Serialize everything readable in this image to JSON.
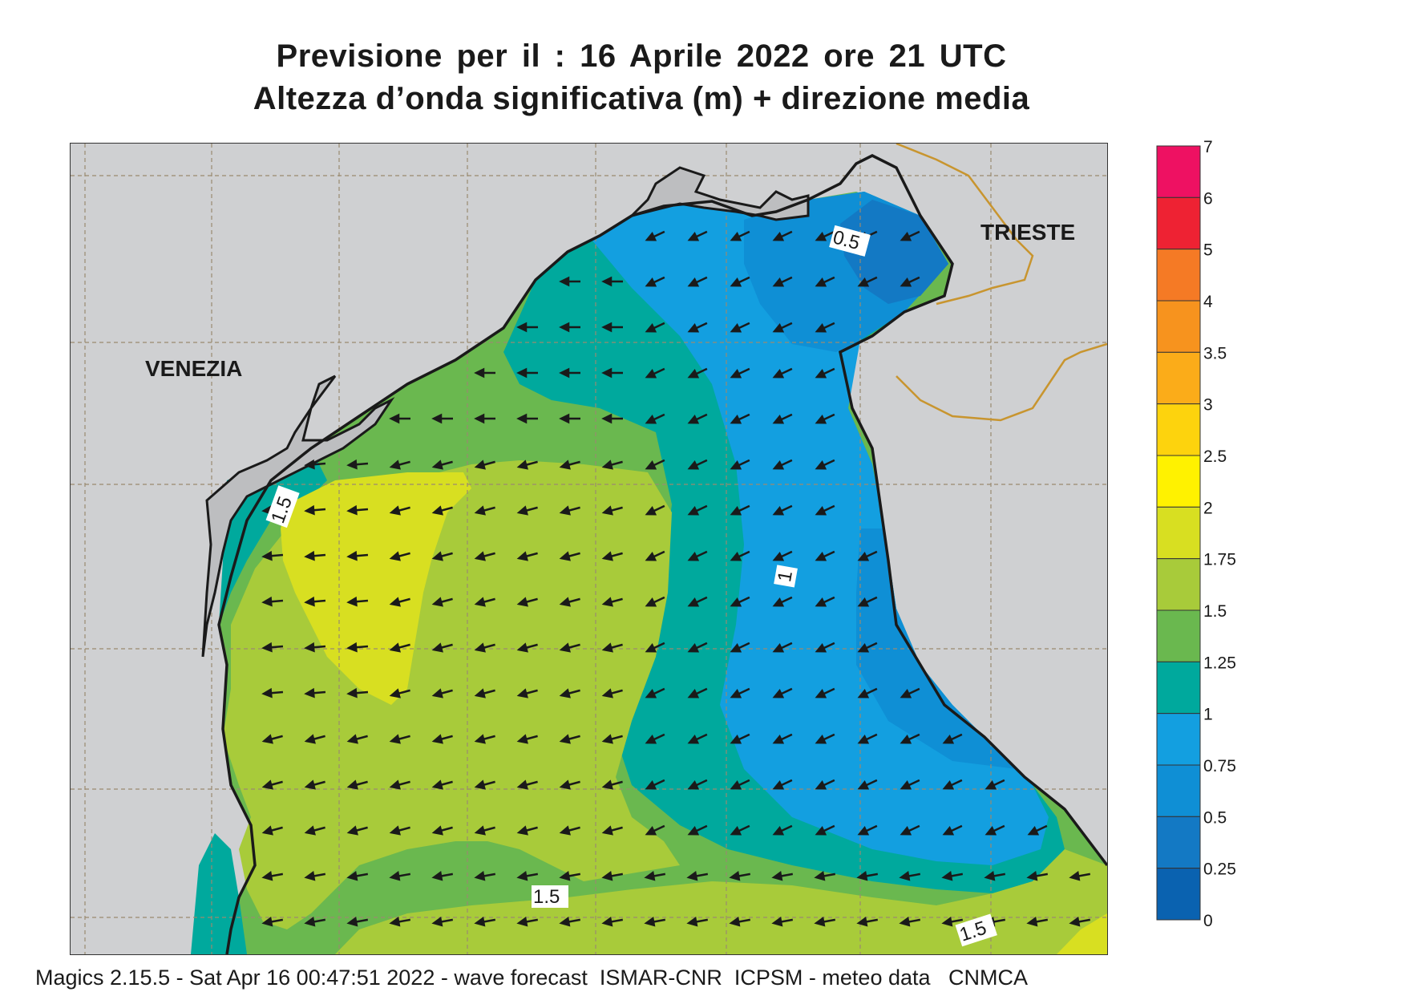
{
  "header": {
    "title_line1": "Previsione per il  :  16   Aprile  2022   ore 21 UTC",
    "title_line2": "Altezza d’onda significativa (m) + direzione media"
  },
  "labels": {
    "venezia": "VENEZIA",
    "trieste": "TRIESTE"
  },
  "contour_labels": [
    "0.5",
    "1.5",
    "1",
    "1.5",
    "1.5"
  ],
  "legend": {
    "ticks": [
      "7",
      "6",
      "5",
      "4",
      "3.5",
      "3",
      "2.5",
      "2",
      "1.75",
      "1.5",
      "1.25",
      "1",
      "0.75",
      "0.5",
      "0.25",
      "0"
    ],
    "colors": [
      "#ee1162",
      "#ee2233",
      "#f57a25",
      "#f7931e",
      "#fbac19",
      "#fdd30d",
      "#fff200",
      "#d8df21",
      "#a8cb3a",
      "#6ab84f",
      "#00a99d",
      "#139fe0",
      "#0f8fd5",
      "#1379c4",
      "#0a62b0"
    ]
  },
  "footer": {
    "text": "Magics 2.15.5 - Sat Apr 16 00:47:51 2022 - wave forecast  ISMAR-CNR  ICPSM - meteo data   CNMCA"
  },
  "map_colors": {
    "land": "#cfd0d2",
    "coast": "#1a1a1a",
    "border": "#c8952f",
    "grid": "#9a8a70"
  }
}
